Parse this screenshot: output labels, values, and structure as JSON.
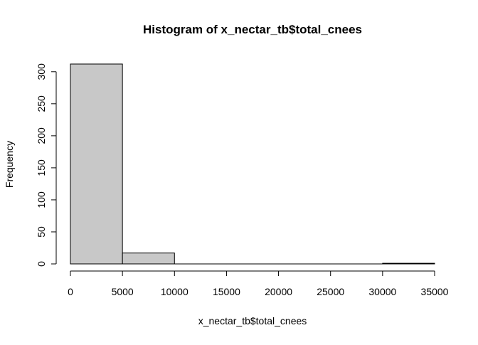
{
  "chart_data": {
    "type": "bar",
    "title": "Histogram of x_nectar_tb$total_cnees",
    "xlabel": "x_nectar_tb$total_cnees",
    "ylabel": "Frequency",
    "bins": [
      {
        "start": 0,
        "end": 5000,
        "count": 312
      },
      {
        "start": 5000,
        "end": 10000,
        "count": 17
      },
      {
        "start": 10000,
        "end": 15000,
        "count": 0
      },
      {
        "start": 15000,
        "end": 20000,
        "count": 0
      },
      {
        "start": 20000,
        "end": 25000,
        "count": 0
      },
      {
        "start": 25000,
        "end": 30000,
        "count": 0
      },
      {
        "start": 30000,
        "end": 35000,
        "count": 1
      }
    ],
    "xlim": [
      0,
      35000
    ],
    "ylim": [
      0,
      312
    ],
    "x_ticks": [
      "0",
      "5000",
      "10000",
      "15000",
      "20000",
      "25000",
      "30000",
      "35000"
    ],
    "y_ticks": [
      "0",
      "50",
      "100",
      "150",
      "200",
      "250",
      "300"
    ],
    "grid": false,
    "legend": "none",
    "colors": {
      "bar_fill": "#c8c8c8",
      "bar_stroke": "#000000"
    }
  }
}
